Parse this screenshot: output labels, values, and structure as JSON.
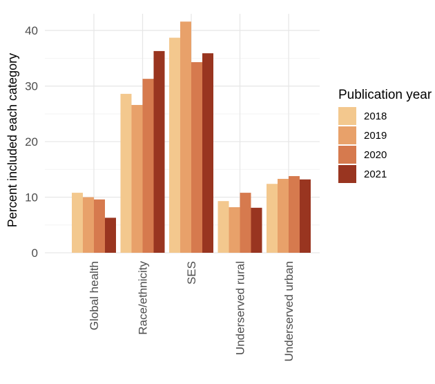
{
  "chart_data": {
    "type": "bar",
    "ylabel": "Percent included each category",
    "xlabel": "",
    "ylim": [
      0,
      43
    ],
    "y_ticks": [
      0,
      10,
      20,
      30,
      40
    ],
    "grid": true,
    "categories": [
      "Global health",
      "Race/ethnicity",
      "SES",
      "Underserved rural",
      "Underserved urban"
    ],
    "legend": {
      "title": "Publication year",
      "placement": "right"
    },
    "series": [
      {
        "name": "2018",
        "color": "#F3C88E",
        "values": [
          10.8,
          28.6,
          38.7,
          9.3,
          12.4
        ]
      },
      {
        "name": "2019",
        "color": "#E8A16A",
        "values": [
          10.0,
          26.6,
          41.6,
          8.2,
          13.3
        ]
      },
      {
        "name": "2020",
        "color": "#D67A4E",
        "values": [
          9.6,
          31.3,
          34.3,
          10.8,
          13.8
        ]
      },
      {
        "name": "2021",
        "color": "#993520",
        "values": [
          6.3,
          36.3,
          35.9,
          8.1,
          13.2
        ]
      }
    ]
  }
}
